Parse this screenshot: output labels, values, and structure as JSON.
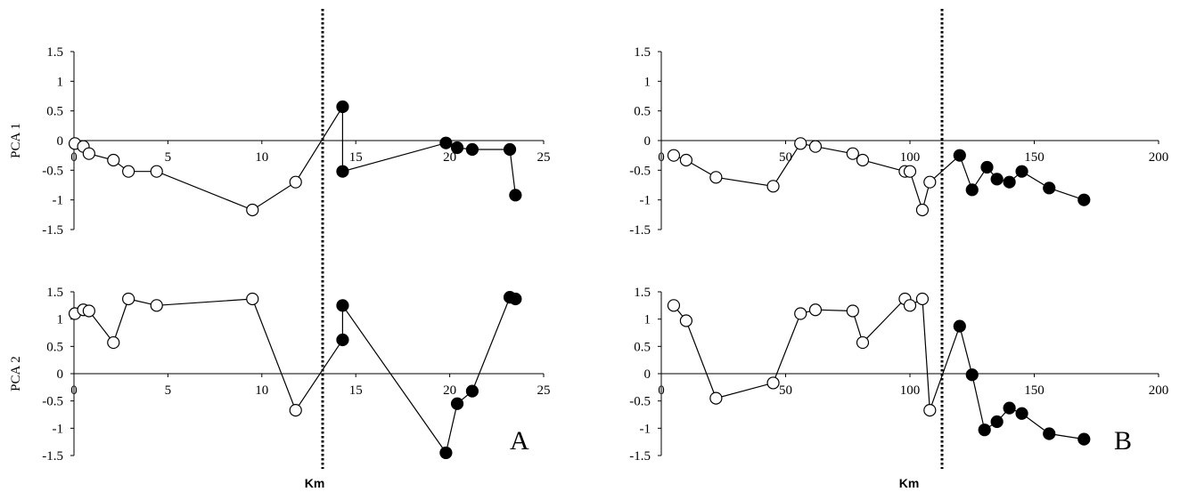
{
  "chart_data": [
    {
      "type": "scatter",
      "panel": "A",
      "xlabel": "Km",
      "xlim": [
        0,
        25
      ],
      "xticks": [
        0,
        5,
        10,
        15,
        20,
        25
      ],
      "divider_x": 13.2,
      "plots": [
        {
          "ylabel": "PCA 1",
          "ylim": [
            -1.5,
            1.5
          ],
          "yticks": [
            -1.5,
            -1,
            -0.5,
            0,
            0.5,
            1,
            1.5
          ],
          "series": [
            {
              "fill": "#ffffff",
              "points": [
                [
                  0.05,
                  -0.05
                ],
                [
                  0.5,
                  -0.1
                ],
                [
                  0.8,
                  -0.22
                ],
                [
                  2.1,
                  -0.33
                ],
                [
                  2.9,
                  -0.52
                ],
                [
                  4.4,
                  -0.52
                ],
                [
                  9.5,
                  -1.17
                ],
                [
                  11.8,
                  -0.7
                ]
              ]
            },
            {
              "fill": "#000000",
              "points": [
                [
                  14.3,
                  0.57
                ],
                [
                  14.3,
                  -0.52
                ],
                [
                  19.8,
                  -0.04
                ],
                [
                  20.4,
                  -0.12
                ],
                [
                  21.2,
                  -0.15
                ],
                [
                  23.2,
                  -0.15
                ],
                [
                  23.5,
                  -0.92
                ]
              ]
            }
          ],
          "path": [
            [
              0.05,
              -0.05
            ],
            [
              0.5,
              -0.1
            ],
            [
              0.8,
              -0.22
            ],
            [
              2.1,
              -0.33
            ],
            [
              2.9,
              -0.52
            ],
            [
              4.4,
              -0.52
            ],
            [
              9.5,
              -1.17
            ],
            [
              11.8,
              -0.7
            ],
            [
              14.3,
              0.57
            ],
            [
              14.3,
              -0.52
            ],
            [
              19.8,
              -0.04
            ],
            [
              20.4,
              -0.12
            ],
            [
              21.2,
              -0.15
            ],
            [
              23.2,
              -0.15
            ],
            [
              23.5,
              -0.92
            ]
          ]
        },
        {
          "ylabel": "PCA 2",
          "ylim": [
            -1.5,
            1.5
          ],
          "yticks": [
            -1.5,
            -1,
            -0.5,
            0,
            0.5,
            1,
            1.5
          ],
          "series": [
            {
              "fill": "#ffffff",
              "points": [
                [
                  0.05,
                  1.1
                ],
                [
                  0.5,
                  1.17
                ],
                [
                  0.8,
                  1.15
                ],
                [
                  2.1,
                  0.57
                ],
                [
                  2.9,
                  1.37
                ],
                [
                  4.4,
                  1.25
                ],
                [
                  9.5,
                  1.37
                ],
                [
                  11.8,
                  -0.67
                ]
              ]
            },
            {
              "fill": "#000000",
              "points": [
                [
                  14.3,
                  0.62
                ],
                [
                  14.3,
                  1.25
                ],
                [
                  19.8,
                  -1.45
                ],
                [
                  20.4,
                  -0.55
                ],
                [
                  21.2,
                  -0.32
                ],
                [
                  23.2,
                  1.4
                ],
                [
                  23.5,
                  1.37
                ]
              ]
            }
          ],
          "path": [
            [
              0.05,
              1.1
            ],
            [
              0.5,
              1.17
            ],
            [
              0.8,
              1.15
            ],
            [
              2.1,
              0.57
            ],
            [
              2.9,
              1.37
            ],
            [
              4.4,
              1.25
            ],
            [
              9.5,
              1.37
            ],
            [
              11.8,
              -0.67
            ],
            [
              14.3,
              0.62
            ],
            [
              14.3,
              1.25
            ],
            [
              19.8,
              -1.45
            ],
            [
              20.4,
              -0.55
            ],
            [
              21.2,
              -0.32
            ],
            [
              23.2,
              1.4
            ],
            [
              23.5,
              1.37
            ]
          ]
        }
      ]
    },
    {
      "type": "scatter",
      "panel": "B",
      "xlabel": "Km",
      "xlim": [
        0,
        200
      ],
      "xticks": [
        0,
        50,
        100,
        150,
        200
      ],
      "divider_x": 112,
      "plots": [
        {
          "ylabel": "",
          "ylim": [
            -1.5,
            1.5
          ],
          "yticks": [
            -1.5,
            -1,
            -0.5,
            0,
            0.5,
            1,
            1.5
          ],
          "series": [
            {
              "fill": "#ffffff",
              "points": [
                [
                  5,
                  -0.25
                ],
                [
                  10,
                  -0.33
                ],
                [
                  22,
                  -0.62
                ],
                [
                  45,
                  -0.77
                ],
                [
                  56,
                  -0.05
                ],
                [
                  62,
                  -0.1
                ],
                [
                  77,
                  -0.22
                ],
                [
                  81,
                  -0.33
                ],
                [
                  98,
                  -0.52
                ],
                [
                  100,
                  -0.52
                ],
                [
                  105,
                  -1.17
                ],
                [
                  108,
                  -0.7
                ]
              ]
            },
            {
              "fill": "#000000",
              "points": [
                [
                  120,
                  -0.25
                ],
                [
                  125,
                  -0.83
                ],
                [
                  131,
                  -0.45
                ],
                [
                  135,
                  -0.65
                ],
                [
                  140,
                  -0.7
                ],
                [
                  145,
                  -0.52
                ],
                [
                  156,
                  -0.8
                ],
                [
                  170,
                  -1.0
                ]
              ]
            }
          ],
          "path": [
            [
              5,
              -0.25
            ],
            [
              10,
              -0.33
            ],
            [
              22,
              -0.62
            ],
            [
              45,
              -0.77
            ],
            [
              56,
              -0.05
            ],
            [
              62,
              -0.1
            ],
            [
              77,
              -0.22
            ],
            [
              81,
              -0.33
            ],
            [
              98,
              -0.52
            ],
            [
              100,
              -0.52
            ],
            [
              105,
              -1.17
            ],
            [
              108,
              -0.7
            ],
            [
              120,
              -0.25
            ],
            [
              125,
              -0.83
            ],
            [
              131,
              -0.45
            ],
            [
              135,
              -0.65
            ],
            [
              140,
              -0.7
            ],
            [
              145,
              -0.52
            ],
            [
              156,
              -0.8
            ],
            [
              170,
              -1.0
            ]
          ]
        },
        {
          "ylabel": "",
          "ylim": [
            -1.5,
            1.5
          ],
          "yticks": [
            -1.5,
            -1,
            -0.5,
            0,
            0.5,
            1,
            1.5
          ],
          "series": [
            {
              "fill": "#ffffff",
              "points": [
                [
                  5,
                  1.25
                ],
                [
                  10,
                  0.97
                ],
                [
                  22,
                  -0.45
                ],
                [
                  45,
                  -0.17
                ],
                [
                  56,
                  1.1
                ],
                [
                  62,
                  1.17
                ],
                [
                  77,
                  1.15
                ],
                [
                  81,
                  0.57
                ],
                [
                  98,
                  1.37
                ],
                [
                  100,
                  1.25
                ],
                [
                  105,
                  1.37
                ],
                [
                  108,
                  -0.67
                ]
              ]
            },
            {
              "fill": "#000000",
              "points": [
                [
                  120,
                  0.87
                ],
                [
                  125,
                  -0.02
                ],
                [
                  130,
                  -1.03
                ],
                [
                  135,
                  -0.88
                ],
                [
                  140,
                  -0.63
                ],
                [
                  145,
                  -0.73
                ],
                [
                  156,
                  -1.1
                ],
                [
                  170,
                  -1.2
                ]
              ]
            }
          ],
          "path": [
            [
              5,
              1.25
            ],
            [
              10,
              0.97
            ],
            [
              22,
              -0.45
            ],
            [
              45,
              -0.17
            ],
            [
              56,
              1.1
            ],
            [
              62,
              1.17
            ],
            [
              77,
              1.15
            ],
            [
              81,
              0.57
            ],
            [
              98,
              1.37
            ],
            [
              100,
              1.25
            ],
            [
              105,
              1.37
            ],
            [
              108,
              -0.67
            ],
            [
              120,
              0.87
            ],
            [
              125,
              -0.02
            ],
            [
              130,
              -1.03
            ],
            [
              135,
              -0.88
            ],
            [
              140,
              -0.63
            ],
            [
              145,
              -0.73
            ],
            [
              156,
              -1.1
            ],
            [
              170,
              -1.2
            ]
          ]
        }
      ]
    }
  ]
}
